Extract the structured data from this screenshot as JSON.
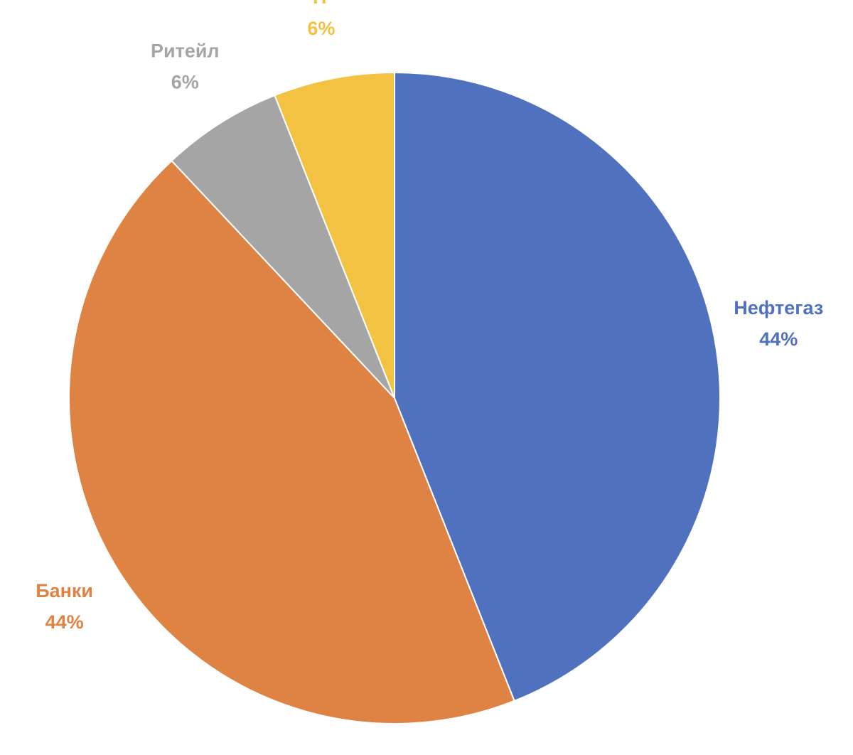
{
  "chart_data": {
    "type": "pie",
    "categories": [
      "Нефтегаз",
      "Банки",
      "Ритейл",
      "IT"
    ],
    "values": [
      44,
      44,
      6,
      6
    ],
    "value_labels": [
      "44%",
      "44%",
      "6%",
      "6%"
    ],
    "colors": [
      "#4f71be",
      "#de8344",
      "#a5a5a5",
      "#f4c242"
    ]
  }
}
